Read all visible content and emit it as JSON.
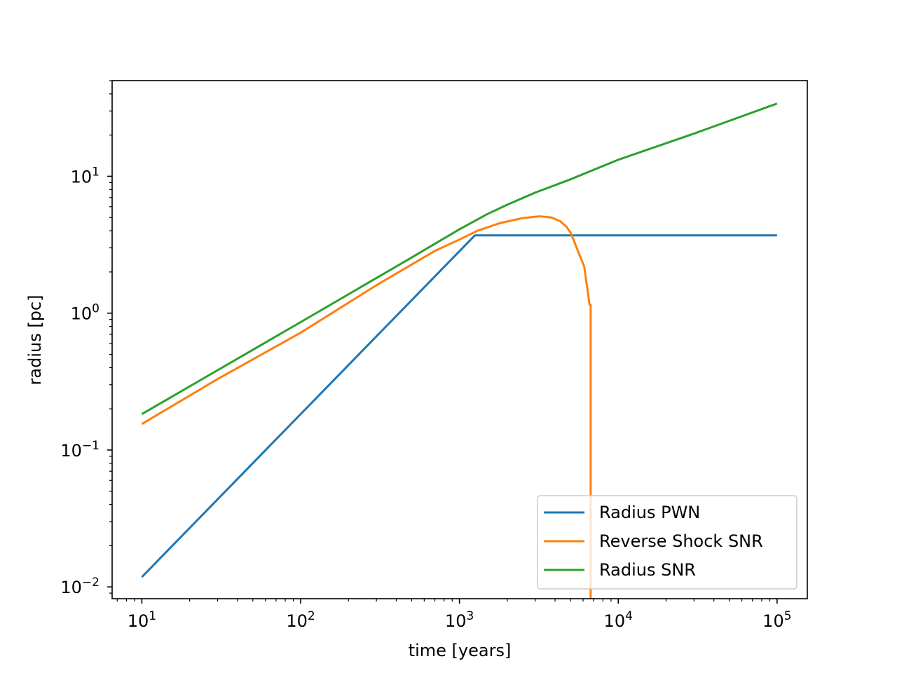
{
  "chart_data": {
    "type": "line",
    "xlabel": "time [years]",
    "ylabel": "radius [pc]",
    "xscale": "log",
    "yscale": "log",
    "xlim": [
      6.5,
      155000
    ],
    "ylim": [
      0.0082,
      50
    ],
    "grid": false,
    "legend_location": "lower right",
    "x_ticks": [
      {
        "value": 10,
        "base": "10",
        "exp": "1"
      },
      {
        "value": 100,
        "base": "10",
        "exp": "2"
      },
      {
        "value": 1000,
        "base": "10",
        "exp": "3"
      },
      {
        "value": 10000,
        "base": "10",
        "exp": "4"
      },
      {
        "value": 100000,
        "base": "10",
        "exp": "5"
      }
    ],
    "y_ticks": [
      {
        "value": 0.01,
        "base": "10",
        "exp": "−2"
      },
      {
        "value": 0.1,
        "base": "10",
        "exp": "−1"
      },
      {
        "value": 1,
        "base": "10",
        "exp": "0"
      },
      {
        "value": 10,
        "base": "10",
        "exp": "1"
      }
    ],
    "series": [
      {
        "name": "Radius PWN",
        "color": "#1f77b4",
        "x": [
          10,
          1250,
          100000
        ],
        "y": [
          0.0118,
          3.7,
          3.7
        ]
      },
      {
        "name": "Reverse Shock SNR",
        "color": "#ff7f0e",
        "x": [
          10,
          30,
          100,
          300,
          700,
          1000,
          1300,
          1800,
          2500,
          3200,
          3800,
          4300,
          4700,
          5000,
          5300,
          5600,
          6100,
          6600,
          6700,
          6700
        ],
        "y": [
          0.155,
          0.33,
          0.72,
          1.6,
          2.85,
          3.45,
          4.0,
          4.55,
          4.95,
          5.1,
          5.0,
          4.7,
          4.3,
          3.9,
          3.3,
          2.8,
          2.2,
          1.15,
          1.15,
          0.0082
        ]
      },
      {
        "name": "Radius SNR",
        "color": "#2ca02c",
        "x": [
          10,
          100,
          500,
          1000,
          1500,
          2000,
          3000,
          5000,
          10000,
          30000,
          100000
        ],
        "y": [
          0.183,
          0.86,
          2.55,
          4.1,
          5.3,
          6.2,
          7.6,
          9.5,
          13.2,
          20.5,
          34
        ]
      }
    ]
  }
}
